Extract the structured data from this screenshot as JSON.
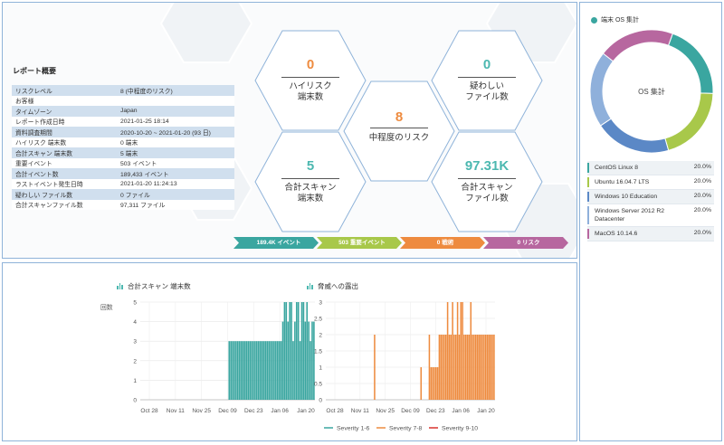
{
  "report": {
    "title": "レポート概要",
    "rows": [
      {
        "key": "リスクレベル",
        "value": "8 (中程度のリスク)"
      },
      {
        "key": "お客様",
        "value": ""
      },
      {
        "key": "タイムゾーン",
        "value": "Japan"
      },
      {
        "key": "レポート作成日時",
        "value": "2021-01-25 18:14"
      },
      {
        "key": "資料調査期間",
        "value": "2020-10-20 ~ 2021-01-20 (93 日)"
      },
      {
        "key": "ハイリスク 端末数",
        "value": "0 端末"
      },
      {
        "key": "合計スキャン 端末数",
        "value": "5 端末"
      },
      {
        "key": "重要イベント",
        "value": "503 イベント"
      },
      {
        "key": "合計イベント数",
        "value": "189,433 イベント"
      },
      {
        "key": "ラストイベント発生日時",
        "value": "2021-01-20 11:24:13"
      },
      {
        "key": "疑わしい ファイル数",
        "value": "0 ファイル"
      },
      {
        "key": "合計スキャンファイル数",
        "value": "97,311 ファイル"
      }
    ]
  },
  "stats": {
    "high_risk": {
      "value": "0",
      "label1": "ハイリスク",
      "label2": "端末数"
    },
    "suspicious": {
      "value": "0",
      "label1": "疑わしい",
      "label2": "ファイル数"
    },
    "medium": {
      "value": "8",
      "label1": "中程度のリスク"
    },
    "scan_endpoints": {
      "value": "5",
      "label1": "合計スキャン",
      "label2": "端末数"
    },
    "scan_files": {
      "value": "97.31K",
      "label1": "合計スキャン",
      "label2": "ファイル数"
    }
  },
  "bars": [
    {
      "label": "189.4K イベント",
      "color": "#3aa6a0"
    },
    {
      "label": "503 重要イベント",
      "color": "#a8c84a"
    },
    {
      "label": "0 戦術",
      "color": "#ee8b3f"
    },
    {
      "label": "0 リスク",
      "color": "#b7679f"
    }
  ],
  "charts": {
    "left_title": "合計スキャン 端末数",
    "right_title": "脅威への露出",
    "legend": [
      {
        "label": "Severity 1-6",
        "color": "#3aa6a0"
      },
      {
        "label": "Severity 7-8",
        "color": "#ee8b3f"
      },
      {
        "label": "Severity 9-10",
        "color": "#d9322d"
      }
    ]
  },
  "chart_data": [
    {
      "type": "bar",
      "title": "合計スキャン 端末数",
      "ylabel": "回数",
      "ylim": [
        0,
        5
      ],
      "yticks": [
        0,
        1,
        2,
        3,
        4,
        5
      ],
      "xticks": [
        "Oct 28",
        "Nov 11",
        "Nov 25",
        "Dec 09",
        "Dec 23",
        "Jan 06",
        "Jan 20"
      ],
      "series": [
        {
          "name": "Severity 1-6",
          "color": "#3aa6a0",
          "values": [
            0,
            0,
            0,
            0,
            0,
            0,
            0,
            0,
            0,
            0,
            0,
            0,
            0,
            0,
            0,
            0,
            0,
            0,
            0,
            0,
            0,
            0,
            0,
            0,
            0,
            0,
            0,
            0,
            0,
            0,
            0,
            0,
            0,
            0,
            0,
            0,
            0,
            0,
            0,
            0,
            0,
            0,
            0,
            0,
            0,
            0,
            0,
            0,
            0,
            0,
            0,
            3,
            3,
            3,
            3,
            3,
            3,
            3,
            3,
            3,
            3,
            3,
            3,
            3,
            3,
            3,
            3,
            3,
            3,
            3,
            3,
            3,
            3,
            3,
            3,
            3,
            3,
            3,
            3,
            3,
            3,
            3,
            4,
            5,
            5,
            4,
            5,
            5,
            3,
            4,
            5,
            5,
            3,
            5,
            5,
            4,
            5,
            4,
            3,
            4,
            4
          ]
        }
      ]
    },
    {
      "type": "bar",
      "title": "脅威への露出",
      "ylim": [
        0,
        3
      ],
      "yticks": [
        0,
        0.5,
        1,
        1.5,
        2,
        2.5,
        3
      ],
      "xticks": [
        "Oct 28",
        "Nov 11",
        "Nov 25",
        "Dec 09",
        "Dec 23",
        "Jan 06",
        "Jan 20"
      ],
      "series": [
        {
          "name": "Severity 7-8",
          "color": "#ee8b3f",
          "values": [
            0,
            0,
            0,
            0,
            0,
            0,
            0,
            0,
            0,
            0,
            0,
            0,
            0,
            0,
            0,
            0,
            0,
            0,
            0,
            0,
            0,
            0,
            0,
            0,
            0,
            0,
            0,
            0,
            0,
            2,
            0,
            0,
            0,
            0,
            0,
            0,
            0,
            0,
            0,
            0,
            0,
            0,
            0,
            0,
            0,
            0,
            0,
            0,
            0,
            0,
            0,
            0,
            0,
            0,
            0,
            0,
            0,
            1,
            0,
            0,
            0,
            0,
            2,
            1,
            1,
            1,
            1,
            1,
            2,
            2,
            2,
            2,
            2,
            3,
            2,
            2,
            3,
            2,
            2,
            3,
            2,
            3,
            3,
            2,
            2,
            2,
            2,
            3,
            2,
            2,
            2,
            2,
            2,
            2,
            2,
            2,
            2,
            2,
            2,
            2,
            2,
            2
          ]
        }
      ]
    }
  ],
  "os": {
    "title": "端末 OS 集計",
    "center_label": "OS 集計",
    "items": [
      {
        "name": "CentOS Linux 8",
        "pct": "20.0%",
        "color": "#3aa6a0"
      },
      {
        "name": "Ubuntu 16.04.7 LTS",
        "pct": "20.0%",
        "color": "#a8c84a"
      },
      {
        "name": "Windows 10 Education",
        "pct": "20.0%",
        "color": "#5b88c6"
      },
      {
        "name": "Windows Server 2012 R2 Datacenter",
        "pct": "20.0%",
        "color": "#8fb0db"
      },
      {
        "name": "MacOS 10.14.6",
        "pct": "20.0%",
        "color": "#b7679f"
      }
    ]
  }
}
